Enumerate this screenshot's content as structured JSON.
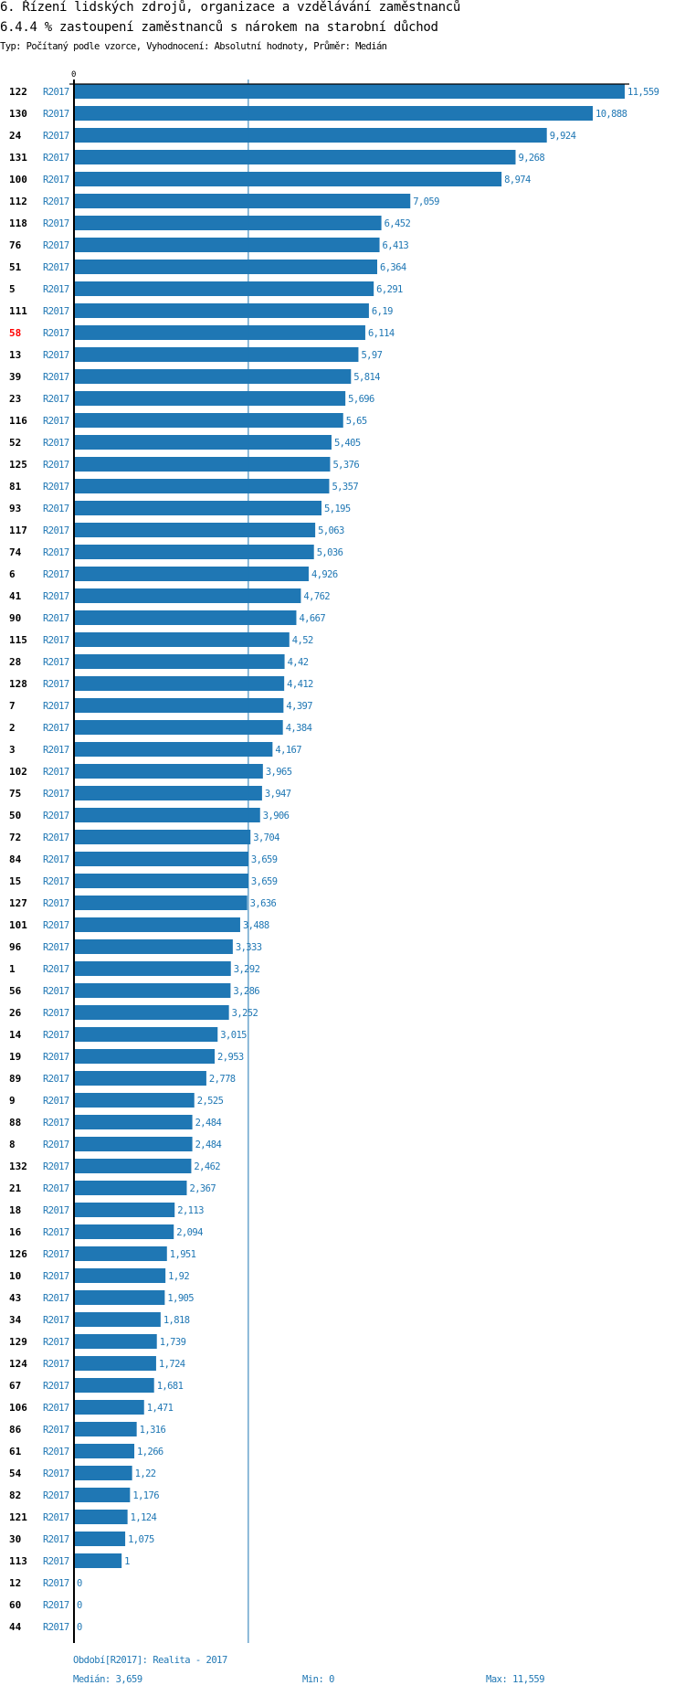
{
  "header": {
    "title": "6. Řízení lidských zdrojů, organizace a vzdělávání zaměstnanců",
    "subtitle": "6.4.4 % zastoupení zaměstnanců s nárokem na starobní důchod",
    "info": "Typ: Počítaný podle vzorce, Vyhodnocení: Absolutní hodnoty, Průměr: Medián"
  },
  "footer": {
    "period": "Období[R2017]: Realita - 2017",
    "median": "Medián: 3,659",
    "min": "Min: 0",
    "max": "Max: 11,559"
  },
  "chart_data": {
    "type": "bar",
    "orientation": "horizontal",
    "x_tick_labels": [
      "0"
    ],
    "xlim": [
      0,
      11.559
    ],
    "median": 3.659,
    "grid": false,
    "colors": {
      "bar": "#1f77b4",
      "median_line": "#1f77b4",
      "highlight_label": "#ff0000",
      "label": "#000000"
    },
    "highlighted_category": "58",
    "series_label": "R2017",
    "categories": [
      "122",
      "130",
      "24",
      "131",
      "100",
      "112",
      "118",
      "76",
      "51",
      "5",
      "111",
      "58",
      "13",
      "39",
      "23",
      "116",
      "52",
      "125",
      "81",
      "93",
      "117",
      "74",
      "6",
      "41",
      "90",
      "115",
      "28",
      "128",
      "7",
      "2",
      "3",
      "102",
      "75",
      "50",
      "72",
      "84",
      "15",
      "127",
      "101",
      "96",
      "1",
      "56",
      "26",
      "14",
      "19",
      "89",
      "9",
      "88",
      "8",
      "132",
      "21",
      "18",
      "16",
      "126",
      "10",
      "43",
      "34",
      "129",
      "124",
      "67",
      "106",
      "86",
      "61",
      "54",
      "82",
      "121",
      "30",
      "113",
      "12",
      "60",
      "44"
    ],
    "values": [
      11.559,
      10.888,
      9.924,
      9.268,
      8.974,
      7.059,
      6.452,
      6.413,
      6.364,
      6.291,
      6.19,
      6.114,
      5.97,
      5.814,
      5.696,
      5.65,
      5.405,
      5.376,
      5.357,
      5.195,
      5.063,
      5.036,
      4.926,
      4.762,
      4.667,
      4.52,
      4.42,
      4.412,
      4.397,
      4.384,
      4.167,
      3.965,
      3.947,
      3.906,
      3.704,
      3.659,
      3.659,
      3.636,
      3.488,
      3.333,
      3.292,
      3.286,
      3.252,
      3.015,
      2.953,
      2.778,
      2.525,
      2.484,
      2.484,
      2.462,
      2.367,
      2.113,
      2.094,
      1.951,
      1.92,
      1.905,
      1.818,
      1.739,
      1.724,
      1.681,
      1.471,
      1.316,
      1.266,
      1.22,
      1.176,
      1.124,
      1.075,
      1,
      0,
      0,
      0
    ],
    "value_labels": [
      "11,559",
      "10,888",
      "9,924",
      "9,268",
      "8,974",
      "7,059",
      "6,452",
      "6,413",
      "6,364",
      "6,291",
      "6,19",
      "6,114",
      "5,97",
      "5,814",
      "5,696",
      "5,65",
      "5,405",
      "5,376",
      "5,357",
      "5,195",
      "5,063",
      "5,036",
      "4,926",
      "4,762",
      "4,667",
      "4,52",
      "4,42",
      "4,412",
      "4,397",
      "4,384",
      "4,167",
      "3,965",
      "3,947",
      "3,906",
      "3,704",
      "3,659",
      "3,659",
      "3,636",
      "3,488",
      "3,333",
      "3,292",
      "3,286",
      "3,252",
      "3,015",
      "2,953",
      "2,778",
      "2,525",
      "2,484",
      "2,484",
      "2,462",
      "2,367",
      "2,113",
      "2,094",
      "1,951",
      "1,92",
      "1,905",
      "1,818",
      "1,739",
      "1,724",
      "1,681",
      "1,471",
      "1,316",
      "1,266",
      "1,22",
      "1,176",
      "1,124",
      "1,075",
      "1",
      "0",
      "0",
      "0"
    ]
  }
}
